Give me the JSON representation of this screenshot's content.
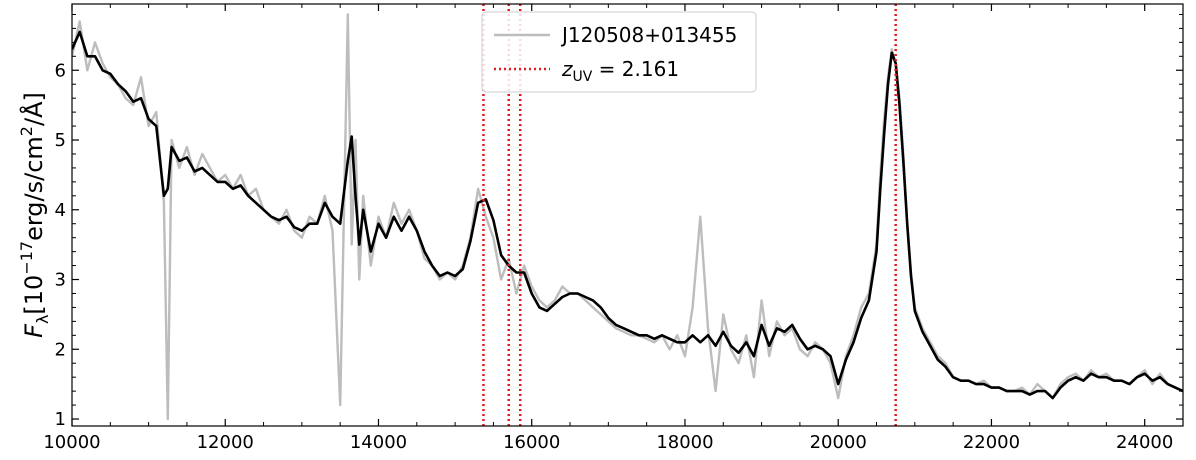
{
  "chart_data": {
    "type": "line",
    "title": "",
    "xlabel": "",
    "ylabel": "F_λ[10^-17 erg/s/cm^2/Å]",
    "ylabel_parts": {
      "F": "F",
      "lambda": "λ",
      "open": "[10",
      "exp": "−17",
      "mid": "erg/s/cm",
      "exp2": "2",
      "close": "/Å]"
    },
    "xlim": [
      10000,
      24500
    ],
    "ylim": [
      0.9,
      6.95
    ],
    "x_ticks": [
      10000,
      12000,
      14000,
      16000,
      18000,
      20000,
      22000,
      24000
    ],
    "y_ticks": [
      1,
      2,
      3,
      4,
      5,
      6
    ],
    "grid": false,
    "legend_position": "top-center",
    "series": [
      {
        "name": "J120508+013455",
        "role": "raw",
        "color": "#bdbdbd",
        "x": [
          10000,
          10100,
          10200,
          10300,
          10400,
          10500,
          10600,
          10700,
          10800,
          10900,
          11000,
          11100,
          11200,
          11250,
          11300,
          11400,
          11500,
          11600,
          11700,
          11800,
          11900,
          12000,
          12100,
          12200,
          12300,
          12400,
          12500,
          12600,
          12700,
          12800,
          12900,
          13000,
          13100,
          13200,
          13300,
          13400,
          13500,
          13600,
          13650,
          13700,
          13750,
          13800,
          13900,
          14000,
          14100,
          14200,
          14300,
          14400,
          14500,
          14600,
          14700,
          14800,
          14900,
          15000,
          15100,
          15200,
          15300,
          15400,
          15500,
          15600,
          15700,
          15800,
          15900,
          16000,
          16100,
          16200,
          16300,
          16400,
          16500,
          16600,
          16700,
          16800,
          16900,
          17000,
          17100,
          17200,
          17300,
          17400,
          17500,
          17600,
          17700,
          17800,
          17900,
          18000,
          18100,
          18200,
          18300,
          18400,
          18500,
          18600,
          18700,
          18800,
          18900,
          19000,
          19100,
          19200,
          19300,
          19400,
          19500,
          19600,
          19700,
          19800,
          19900,
          20000,
          20100,
          20200,
          20300,
          20400,
          20500,
          20550,
          20600,
          20650,
          20700,
          20750,
          20800,
          20850,
          20900,
          20950,
          21000,
          21100,
          21200,
          21300,
          21400,
          21500,
          21600,
          21700,
          21800,
          21900,
          22000,
          22100,
          22200,
          22300,
          22400,
          22500,
          22600,
          22700,
          22800,
          22900,
          23000,
          23100,
          23200,
          23300,
          23400,
          23500,
          23600,
          23700,
          23800,
          23900,
          24000,
          24100,
          24200,
          24300,
          24400,
          24500
        ],
        "y": [
          6.2,
          6.7,
          6.0,
          6.4,
          6.1,
          5.9,
          5.8,
          5.6,
          5.5,
          5.9,
          5.2,
          5.4,
          4.1,
          1.0,
          5.0,
          4.6,
          4.9,
          4.5,
          4.8,
          4.6,
          4.4,
          4.5,
          4.3,
          4.5,
          4.2,
          4.3,
          4.0,
          3.9,
          3.8,
          4.0,
          3.7,
          3.6,
          3.9,
          3.8,
          4.2,
          3.7,
          1.2,
          6.8,
          3.5,
          5.0,
          3.0,
          4.2,
          3.2,
          3.9,
          3.6,
          4.1,
          3.8,
          4.0,
          3.7,
          3.3,
          3.2,
          3.0,
          3.1,
          3.0,
          3.2,
          3.6,
          4.3,
          3.9,
          3.6,
          3.0,
          3.3,
          2.8,
          3.2,
          2.9,
          2.7,
          2.6,
          2.7,
          2.9,
          2.8,
          2.8,
          2.7,
          2.6,
          2.5,
          2.4,
          2.3,
          2.25,
          2.2,
          2.2,
          2.15,
          2.1,
          2.2,
          2.0,
          2.2,
          1.9,
          2.6,
          3.9,
          2.3,
          1.4,
          2.5,
          2.0,
          1.8,
          2.2,
          1.6,
          2.7,
          1.9,
          2.4,
          2.2,
          2.3,
          2.0,
          1.9,
          2.1,
          2.0,
          1.8,
          1.3,
          1.9,
          2.2,
          2.6,
          2.8,
          3.5,
          4.5,
          5.3,
          5.9,
          6.3,
          6.1,
          5.6,
          4.8,
          3.8,
          3.1,
          2.6,
          2.3,
          2.1,
          1.9,
          1.8,
          1.6,
          1.55,
          1.55,
          1.5,
          1.55,
          1.45,
          1.45,
          1.4,
          1.4,
          1.45,
          1.35,
          1.5,
          1.4,
          1.3,
          1.5,
          1.6,
          1.65,
          1.55,
          1.7,
          1.6,
          1.65,
          1.55,
          1.55,
          1.5,
          1.6,
          1.7,
          1.5,
          1.65,
          1.5,
          1.45,
          1.4
        ]
      },
      {
        "name": "",
        "role": "smoothed",
        "color": "#000000",
        "x": [
          10000,
          10100,
          10200,
          10300,
          10400,
          10500,
          10600,
          10700,
          10800,
          10900,
          11000,
          11100,
          11200,
          11250,
          11300,
          11400,
          11500,
          11600,
          11700,
          11800,
          11900,
          12000,
          12100,
          12200,
          12300,
          12400,
          12500,
          12600,
          12700,
          12800,
          12900,
          13000,
          13100,
          13200,
          13300,
          13400,
          13500,
          13600,
          13650,
          13700,
          13750,
          13800,
          13900,
          14000,
          14100,
          14200,
          14300,
          14400,
          14500,
          14600,
          14700,
          14800,
          14900,
          15000,
          15100,
          15200,
          15300,
          15400,
          15500,
          15600,
          15700,
          15800,
          15900,
          16000,
          16100,
          16200,
          16300,
          16400,
          16500,
          16600,
          16700,
          16800,
          16900,
          17000,
          17100,
          17200,
          17300,
          17400,
          17500,
          17600,
          17700,
          17800,
          17900,
          18000,
          18100,
          18200,
          18300,
          18400,
          18500,
          18600,
          18700,
          18800,
          18900,
          19000,
          19100,
          19200,
          19300,
          19400,
          19500,
          19600,
          19700,
          19800,
          19900,
          20000,
          20100,
          20200,
          20300,
          20400,
          20500,
          20550,
          20600,
          20650,
          20700,
          20750,
          20800,
          20850,
          20900,
          20950,
          21000,
          21100,
          21200,
          21300,
          21400,
          21500,
          21600,
          21700,
          21800,
          21900,
          22000,
          22100,
          22200,
          22300,
          22400,
          22500,
          22600,
          22700,
          22800,
          22900,
          23000,
          23100,
          23200,
          23300,
          23400,
          23500,
          23600,
          23700,
          23800,
          23900,
          24000,
          24100,
          24200,
          24300,
          24400,
          24500
        ],
        "y": [
          6.3,
          6.55,
          6.2,
          6.2,
          6.0,
          5.95,
          5.8,
          5.7,
          5.55,
          5.6,
          5.3,
          5.2,
          4.2,
          4.3,
          4.9,
          4.7,
          4.75,
          4.55,
          4.6,
          4.5,
          4.4,
          4.4,
          4.3,
          4.35,
          4.2,
          4.1,
          4.0,
          3.9,
          3.85,
          3.9,
          3.75,
          3.7,
          3.8,
          3.8,
          4.1,
          3.9,
          3.8,
          4.7,
          5.05,
          4.2,
          3.5,
          4.0,
          3.4,
          3.8,
          3.6,
          3.9,
          3.7,
          3.9,
          3.7,
          3.4,
          3.2,
          3.05,
          3.1,
          3.05,
          3.15,
          3.55,
          4.1,
          4.15,
          3.85,
          3.35,
          3.2,
          3.1,
          3.1,
          2.8,
          2.6,
          2.55,
          2.65,
          2.75,
          2.8,
          2.8,
          2.75,
          2.7,
          2.6,
          2.45,
          2.35,
          2.3,
          2.25,
          2.2,
          2.2,
          2.15,
          2.2,
          2.15,
          2.1,
          2.1,
          2.2,
          2.1,
          2.2,
          2.05,
          2.25,
          2.05,
          1.95,
          2.1,
          1.9,
          2.35,
          2.05,
          2.3,
          2.25,
          2.35,
          2.15,
          2.0,
          2.05,
          2.0,
          1.9,
          1.5,
          1.85,
          2.1,
          2.45,
          2.7,
          3.4,
          4.3,
          5.1,
          5.8,
          6.25,
          6.1,
          5.5,
          4.7,
          3.8,
          3.05,
          2.55,
          2.25,
          2.05,
          1.85,
          1.75,
          1.6,
          1.55,
          1.55,
          1.5,
          1.5,
          1.45,
          1.45,
          1.4,
          1.4,
          1.4,
          1.35,
          1.4,
          1.4,
          1.3,
          1.45,
          1.55,
          1.6,
          1.55,
          1.65,
          1.6,
          1.6,
          1.55,
          1.55,
          1.5,
          1.6,
          1.65,
          1.55,
          1.6,
          1.5,
          1.45,
          1.4
        ]
      }
    ],
    "vlines": {
      "name": "z_UV = 2.161",
      "color": "#e41a1c",
      "style": "dotted",
      "x": [
        15370,
        15700,
        15850,
        20750
      ]
    },
    "legend": [
      {
        "label": "J120508+013455",
        "color": "#bdbdbd",
        "style": "solid"
      },
      {
        "label_z": "z",
        "label_sub": "UV",
        "label_rest": " = 2.161",
        "color": "#e41a1c",
        "style": "dotted"
      }
    ]
  }
}
